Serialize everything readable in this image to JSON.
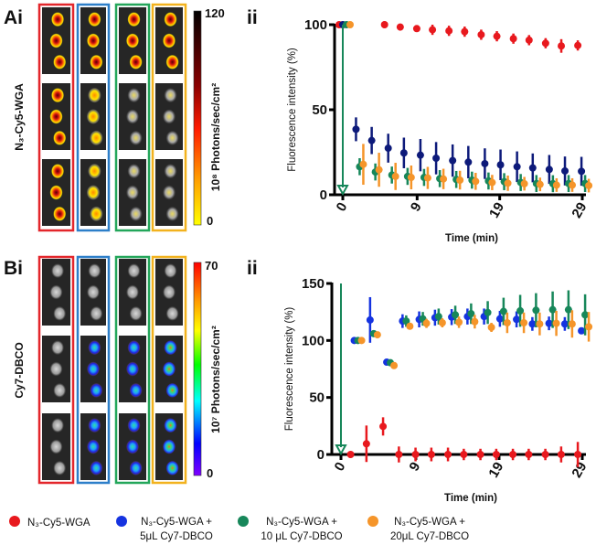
{
  "panels": {
    "a_label": "Ai",
    "a_ii": "ii",
    "b_label": "Bi",
    "b_ii": "ii",
    "a_side": "N₃-Cy5-WGA",
    "b_side": "Cy7-DBCO"
  },
  "colorbars": {
    "a": {
      "max": "120",
      "min": "0",
      "unit": "10⁸ Photons/sec/cm²"
    },
    "b": {
      "max": "70",
      "min": "0",
      "unit": "10⁷ Photons/sec/cm²"
    }
  },
  "legend": [
    {
      "color": "#e8191e",
      "line1": "N₃-Cy5-WGA",
      "line2": ""
    },
    {
      "color": "#1533e0",
      "line1": "N₃-Cy5-WGA +",
      "line2": "5μL Cy7-DBCO"
    },
    {
      "color": "#17875a",
      "line1": "N₃-Cy5-WGA +",
      "line2": "10 μL Cy7-DBCO"
    },
    {
      "color": "#f5952a",
      "line1": "N₃-Cy5-WGA +",
      "line2": "20μL Cy7-DBCO"
    }
  ],
  "chart_data": [
    {
      "type": "scatter",
      "xlabel": "Time (min)",
      "ylabel": "Fluorescence intensity (%)",
      "xticks": [
        "0",
        "9",
        "19",
        "29"
      ],
      "yticks": [
        "0",
        "50",
        "100"
      ],
      "xlim": [
        0,
        29
      ],
      "ylim": [
        0,
        100
      ],
      "grid": false,
      "arrow_color": "#17875a",
      "series": [
        {
          "name": "N₃-Cy5-WGA",
          "color": "#e8191e",
          "x": [
            0,
            5.5,
            7.4,
            9.4,
            11.3,
            13.3,
            15.2,
            17.2,
            19.1,
            21.1,
            23.0,
            25.0,
            26.9,
            28.9
          ],
          "y": [
            100,
            100,
            98.6,
            97.7,
            97,
            96.4,
            95.9,
            94.1,
            93.2,
            91.8,
            90.9,
            89.1,
            87.5,
            87.8
          ],
          "err": [
            0,
            2,
            2,
            2,
            3,
            3,
            3,
            3,
            3,
            3,
            3,
            3,
            4,
            3
          ]
        },
        {
          "name": "N₃-Cy5-WGA + 5μL Cy7-DBCO",
          "color": "#0d1a7a",
          "x": [
            0,
            1.6,
            3.5,
            5.5,
            7.4,
            9.4,
            11.3,
            13.3,
            15.2,
            17.2,
            19.1,
            21.1,
            23.0,
            25.0,
            26.9,
            28.9
          ],
          "y": [
            100,
            38.5,
            31.9,
            27.4,
            24.6,
            23.3,
            21.5,
            20.1,
            19.2,
            18.3,
            17.6,
            16.5,
            15.8,
            14.9,
            14,
            13.8
          ],
          "err": [
            0,
            7,
            8,
            8.5,
            9,
            9.5,
            9.5,
            9.5,
            9.5,
            9,
            9,
            9,
            8.5,
            8.5,
            8.5,
            8.5
          ]
        },
        {
          "name": "N₃-Cy5-WGA + 10 μL Cy7-DBCO",
          "color": "#17875a",
          "x": [
            0,
            1.6,
            3.5,
            5.5,
            7.4,
            9.4,
            11.3,
            13.3,
            15.2,
            17.2,
            19.1,
            21.1,
            23.0,
            25.0,
            26.9,
            28.9
          ],
          "y": [
            100,
            16.5,
            13.4,
            11.6,
            10.8,
            10.2,
            9.5,
            9,
            8.6,
            8.1,
            7.7,
            7.2,
            6.6,
            6.5,
            6.6,
            6.6
          ],
          "err": [
            0,
            5,
            5,
            5,
            5,
            5,
            5,
            5,
            5,
            5,
            5,
            5,
            5,
            5,
            5,
            5
          ]
        },
        {
          "name": "N₃-Cy5-WGA + 20μL Cy7-DBCO",
          "color": "#f5952a",
          "x": [
            0,
            1.6,
            3.5,
            5.5,
            7.4,
            9.4,
            11.3,
            13.3,
            15.2,
            17.2,
            19.1,
            21.1,
            23.0,
            25.0,
            26.9,
            28.9
          ],
          "y": [
            100,
            17.9,
            14.7,
            10.8,
            10.2,
            9.9,
            9.3,
            8.6,
            7.9,
            7.2,
            6.8,
            6.5,
            6.1,
            5.7,
            5.7,
            5.4
          ],
          "err": [
            0,
            12,
            10,
            8,
            7,
            6.5,
            6,
            5.5,
            5,
            4.5,
            4.5,
            4,
            4,
            4,
            4,
            4
          ]
        }
      ]
    },
    {
      "type": "scatter",
      "xlabel": "Time (min)",
      "ylabel": "Fluorescence intensity (%)",
      "xticks": [
        "0",
        "9",
        "19",
        "29"
      ],
      "yticks": [
        "0",
        "50",
        "100",
        "150"
      ],
      "xlim": [
        0,
        29
      ],
      "ylim": [
        0,
        150
      ],
      "grid": false,
      "arrow_color": "#17875a",
      "series": [
        {
          "name": "N₃-Cy5-WGA",
          "color": "#e8191e",
          "x": [
            1.6,
            3.5,
            5.5,
            7.4,
            9.4,
            11.3,
            13.3,
            15.2,
            17.2,
            19.1,
            21.1,
            23.0,
            25.0,
            26.9,
            28.9
          ],
          "y": [
            0,
            9.4,
            24.6,
            0,
            0,
            0,
            0,
            0,
            0,
            0,
            0,
            0,
            0,
            0,
            0
          ],
          "err": [
            0,
            16,
            8,
            7,
            6,
            6,
            6,
            5,
            5,
            5,
            5,
            5,
            5,
            7,
            11
          ]
        },
        {
          "name": "N₃-Cy5-WGA + 5μL Cy7-DBCO",
          "color": "#1533e0",
          "x": [
            1.6,
            3.5,
            5.5,
            7.4,
            9.4,
            11.3,
            13.3,
            15.2,
            17.2,
            19.1,
            21.1,
            23.0,
            25.0,
            26.9,
            28.9
          ],
          "y": [
            100,
            118,
            81,
            117,
            118.5,
            120,
            120.5,
            121,
            121,
            119,
            118.5,
            114.5,
            115,
            114.5,
            108.5
          ],
          "err": [
            0,
            20,
            2,
            6,
            7,
            7,
            7,
            7,
            7,
            7,
            7,
            6,
            6,
            6,
            2
          ]
        },
        {
          "name": "N₃-Cy5-WGA + 10 μL Cy7-DBCO",
          "color": "#17875a",
          "x": [
            1.6,
            3.5,
            5.5,
            7.4,
            9.4,
            11.3,
            13.3,
            15.2,
            17.2,
            19.1,
            21.1,
            23.0,
            25.0,
            26.9,
            28.9
          ],
          "y": [
            100,
            106,
            80.5,
            117,
            119,
            121,
            122.5,
            123.5,
            124.5,
            125.5,
            126,
            126.5,
            127,
            127,
            122.5
          ],
          "err": [
            0,
            2,
            2,
            5,
            6,
            7,
            8,
            9,
            10,
            12,
            14,
            15,
            16,
            17,
            18
          ]
        },
        {
          "name": "N₃-Cy5-WGA + 20μL Cy7-DBCO",
          "color": "#f5952a",
          "x": [
            1.6,
            3.5,
            5.5,
            7.4,
            9.4,
            11.3,
            13.3,
            15.2,
            17.2,
            19.1,
            21.1,
            23.0,
            25.0,
            26.9,
            28.9
          ],
          "y": [
            100,
            105,
            78,
            112.5,
            115,
            115.5,
            116,
            116.5,
            111.5,
            115.5,
            115.5,
            114.5,
            115,
            114.5,
            112
          ],
          "err": [
            0,
            2,
            2,
            3,
            4,
            4,
            5,
            6,
            4,
            9,
            9,
            10,
            11,
            12,
            13
          ]
        }
      ]
    }
  ]
}
